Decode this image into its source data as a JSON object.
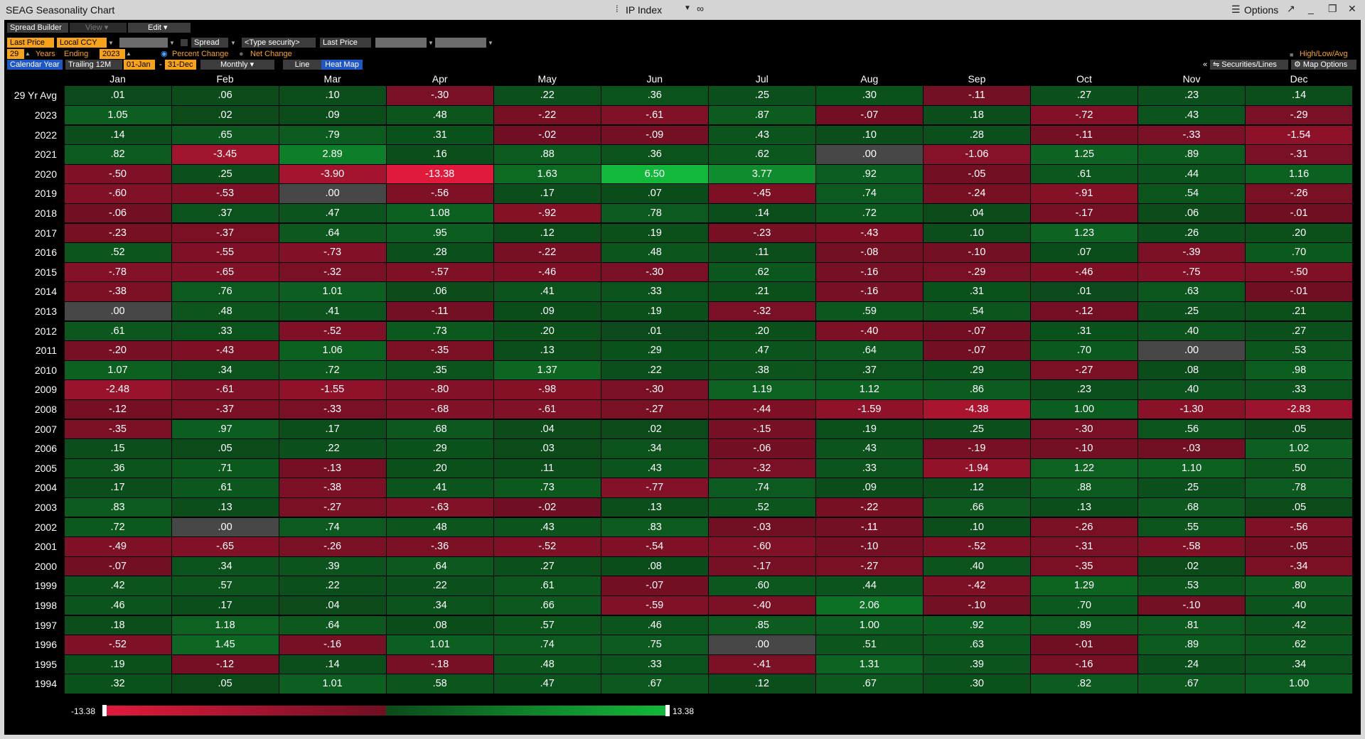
{
  "window": {
    "title": "SEAG Seasonality Chart",
    "security": "IP Index",
    "options_label": "Options"
  },
  "toolbar": {
    "spread_builder": "Spread Builder",
    "view": "View",
    "edit": "Edit",
    "price_field": "Last Price",
    "currency": "Local CCY",
    "spread": "Spread",
    "type_security": "<Type security>",
    "last_price2": "Last Price",
    "years_value": "29",
    "years_label": "Years",
    "ending_label": "Ending",
    "ending_year": "2023",
    "percent_change": "Percent Change",
    "net_change": "Net Change",
    "calendar_year": "Calendar Year",
    "trailing": "Trailing 12M",
    "start_date": "01-Jan",
    "dash": "-",
    "end_date": "31-Dec",
    "periodicity": "Monthly",
    "line": "Line",
    "heat_map": "Heat Map",
    "high_low_avg": "High/Low/Avg",
    "collapse": "«",
    "securities_lines": "Securities/Lines",
    "map_options": "Map Options"
  },
  "colors": {
    "pos_dark": "#0b4a1a",
    "pos_bright": "#12b83a",
    "neg_dark": "#6e0f22",
    "neg_bright": "#e11a3c",
    "zero": "#474747"
  },
  "legend": {
    "min": "-13.38",
    "max": "13.38"
  },
  "chart_data": {
    "type": "heatmap",
    "columns": [
      "Jan",
      "Feb",
      "Mar",
      "Apr",
      "May",
      "Jun",
      "Jul",
      "Aug",
      "Sep",
      "Oct",
      "Nov",
      "Dec"
    ],
    "rows": [
      {
        "label": "29 Yr Avg",
        "values": [
          ".01",
          ".06",
          ".10",
          "-.30",
          ".22",
          ".36",
          ".25",
          ".30",
          "-.11",
          ".27",
          ".23",
          ".14"
        ]
      },
      {
        "label": "2023",
        "values": [
          "1.05",
          ".02",
          ".09",
          ".48",
          "-.22",
          "-.61",
          ".87",
          "-.07",
          ".18",
          "-.72",
          ".43",
          "-.29"
        ]
      },
      {
        "label": "2022",
        "values": [
          ".14",
          ".65",
          ".79",
          ".31",
          "-.02",
          "-.09",
          ".43",
          ".10",
          ".28",
          "-.11",
          "-.33",
          "-1.54"
        ]
      },
      {
        "label": "2021",
        "values": [
          ".82",
          "-3.45",
          "2.89",
          ".16",
          ".88",
          ".36",
          ".62",
          ".00",
          "-1.06",
          "1.25",
          ".89",
          "-.31"
        ]
      },
      {
        "label": "2020",
        "values": [
          "-.50",
          ".25",
          "-3.90",
          "-13.38",
          "1.63",
          "6.50",
          "3.77",
          ".92",
          "-.05",
          ".61",
          ".44",
          "1.16"
        ]
      },
      {
        "label": "2019",
        "values": [
          "-.60",
          "-.53",
          ".00",
          "-.56",
          ".17",
          ".07",
          "-.45",
          ".74",
          "-.24",
          "-.91",
          ".54",
          "-.26"
        ]
      },
      {
        "label": "2018",
        "values": [
          "-.06",
          ".37",
          ".47",
          "1.08",
          "-.92",
          ".78",
          ".14",
          ".72",
          ".04",
          "-.17",
          ".06",
          "-.01"
        ]
      },
      {
        "label": "2017",
        "values": [
          "-.23",
          "-.37",
          ".64",
          ".95",
          ".12",
          ".19",
          "-.23",
          "-.43",
          ".10",
          "1.23",
          ".26",
          ".20"
        ]
      },
      {
        "label": "2016",
        "values": [
          ".52",
          "-.55",
          "-.73",
          ".28",
          "-.22",
          ".48",
          ".11",
          "-.08",
          "-.10",
          ".07",
          "-.39",
          ".70"
        ]
      },
      {
        "label": "2015",
        "values": [
          "-.78",
          "-.65",
          "-.32",
          "-.57",
          "-.46",
          "-.30",
          ".62",
          "-.16",
          "-.29",
          "-.46",
          "-.75",
          "-.50"
        ]
      },
      {
        "label": "2014",
        "values": [
          "-.38",
          ".76",
          "1.01",
          ".06",
          ".41",
          ".33",
          ".21",
          "-.16",
          ".31",
          ".01",
          ".63",
          "-.01"
        ]
      },
      {
        "label": "2013",
        "values": [
          ".00",
          ".48",
          ".41",
          "-.11",
          ".09",
          ".19",
          "-.32",
          ".59",
          ".54",
          "-.12",
          ".25",
          ".21"
        ]
      },
      {
        "label": "2012",
        "values": [
          ".61",
          ".33",
          "-.52",
          ".73",
          ".20",
          ".01",
          ".20",
          "-.40",
          "-.07",
          ".31",
          ".40",
          ".27"
        ]
      },
      {
        "label": "2011",
        "values": [
          "-.20",
          "-.43",
          "1.06",
          "-.35",
          ".13",
          ".29",
          ".47",
          ".64",
          "-.07",
          ".70",
          ".00",
          ".53"
        ]
      },
      {
        "label": "2010",
        "values": [
          "1.07",
          ".34",
          ".72",
          ".35",
          "1.37",
          ".22",
          ".38",
          ".37",
          ".29",
          "-.27",
          ".08",
          ".98"
        ]
      },
      {
        "label": "2009",
        "values": [
          "-2.48",
          "-.61",
          "-1.55",
          "-.80",
          "-.98",
          "-.30",
          "1.19",
          "1.12",
          ".86",
          ".23",
          ".40",
          ".33"
        ]
      },
      {
        "label": "2008",
        "values": [
          "-.12",
          "-.37",
          "-.33",
          "-.68",
          "-.61",
          "-.27",
          "-.44",
          "-1.59",
          "-4.38",
          "1.00",
          "-1.30",
          "-2.83"
        ]
      },
      {
        "label": "2007",
        "values": [
          "-.35",
          ".97",
          ".17",
          ".68",
          ".04",
          ".02",
          "-.15",
          ".19",
          ".25",
          "-.30",
          ".56",
          ".05"
        ]
      },
      {
        "label": "2006",
        "values": [
          ".15",
          ".05",
          ".22",
          ".29",
          ".03",
          ".34",
          "-.06",
          ".43",
          "-.19",
          "-.10",
          "-.03",
          "1.02"
        ]
      },
      {
        "label": "2005",
        "values": [
          ".36",
          ".71",
          "-.13",
          ".20",
          ".11",
          ".43",
          "-.32",
          ".33",
          "-1.94",
          "1.22",
          "1.10",
          ".50"
        ]
      },
      {
        "label": "2004",
        "values": [
          ".17",
          ".61",
          "-.38",
          ".41",
          ".73",
          "-.77",
          ".74",
          ".09",
          ".12",
          ".88",
          ".25",
          ".78"
        ]
      },
      {
        "label": "2003",
        "values": [
          ".83",
          ".13",
          "-.27",
          "-.63",
          "-.02",
          ".13",
          ".52",
          "-.22",
          ".66",
          ".13",
          ".68",
          ".05"
        ]
      },
      {
        "label": "2002",
        "values": [
          ".72",
          ".00",
          ".74",
          ".48",
          ".43",
          ".83",
          "-.03",
          "-.11",
          ".10",
          "-.26",
          ".55",
          "-.56"
        ]
      },
      {
        "label": "2001",
        "values": [
          "-.49",
          "-.65",
          "-.26",
          "-.36",
          "-.52",
          "-.54",
          "-.60",
          "-.10",
          "-.52",
          "-.31",
          "-.58",
          "-.05"
        ]
      },
      {
        "label": "2000",
        "values": [
          "-.07",
          ".34",
          ".39",
          ".64",
          ".27",
          ".08",
          "-.17",
          "-.27",
          ".40",
          "-.35",
          ".02",
          "-.34"
        ]
      },
      {
        "label": "1999",
        "values": [
          ".42",
          ".57",
          ".22",
          ".22",
          ".61",
          "-.07",
          ".60",
          ".44",
          "-.42",
          "1.29",
          ".53",
          ".80"
        ]
      },
      {
        "label": "1998",
        "values": [
          ".46",
          ".17",
          ".04",
          ".34",
          ".66",
          "-.59",
          "-.40",
          "2.06",
          "-.10",
          ".70",
          "-.10",
          ".40"
        ]
      },
      {
        "label": "1997",
        "values": [
          ".18",
          "1.18",
          ".64",
          ".08",
          ".57",
          ".46",
          ".85",
          "1.00",
          ".92",
          ".89",
          ".81",
          ".42"
        ]
      },
      {
        "label": "1996",
        "values": [
          "-.52",
          "1.45",
          "-.16",
          "1.01",
          ".74",
          ".75",
          ".00",
          ".51",
          ".63",
          "-.01",
          ".89",
          ".62"
        ]
      },
      {
        "label": "1995",
        "values": [
          ".19",
          "-.12",
          ".14",
          "-.18",
          ".48",
          ".33",
          "-.41",
          "1.31",
          ".39",
          "-.16",
          ".24",
          ".34"
        ]
      },
      {
        "label": "1994",
        "values": [
          ".32",
          ".05",
          "1.01",
          ".58",
          ".47",
          ".67",
          ".12",
          ".67",
          ".30",
          ".82",
          ".67",
          "1.00"
        ]
      }
    ]
  }
}
